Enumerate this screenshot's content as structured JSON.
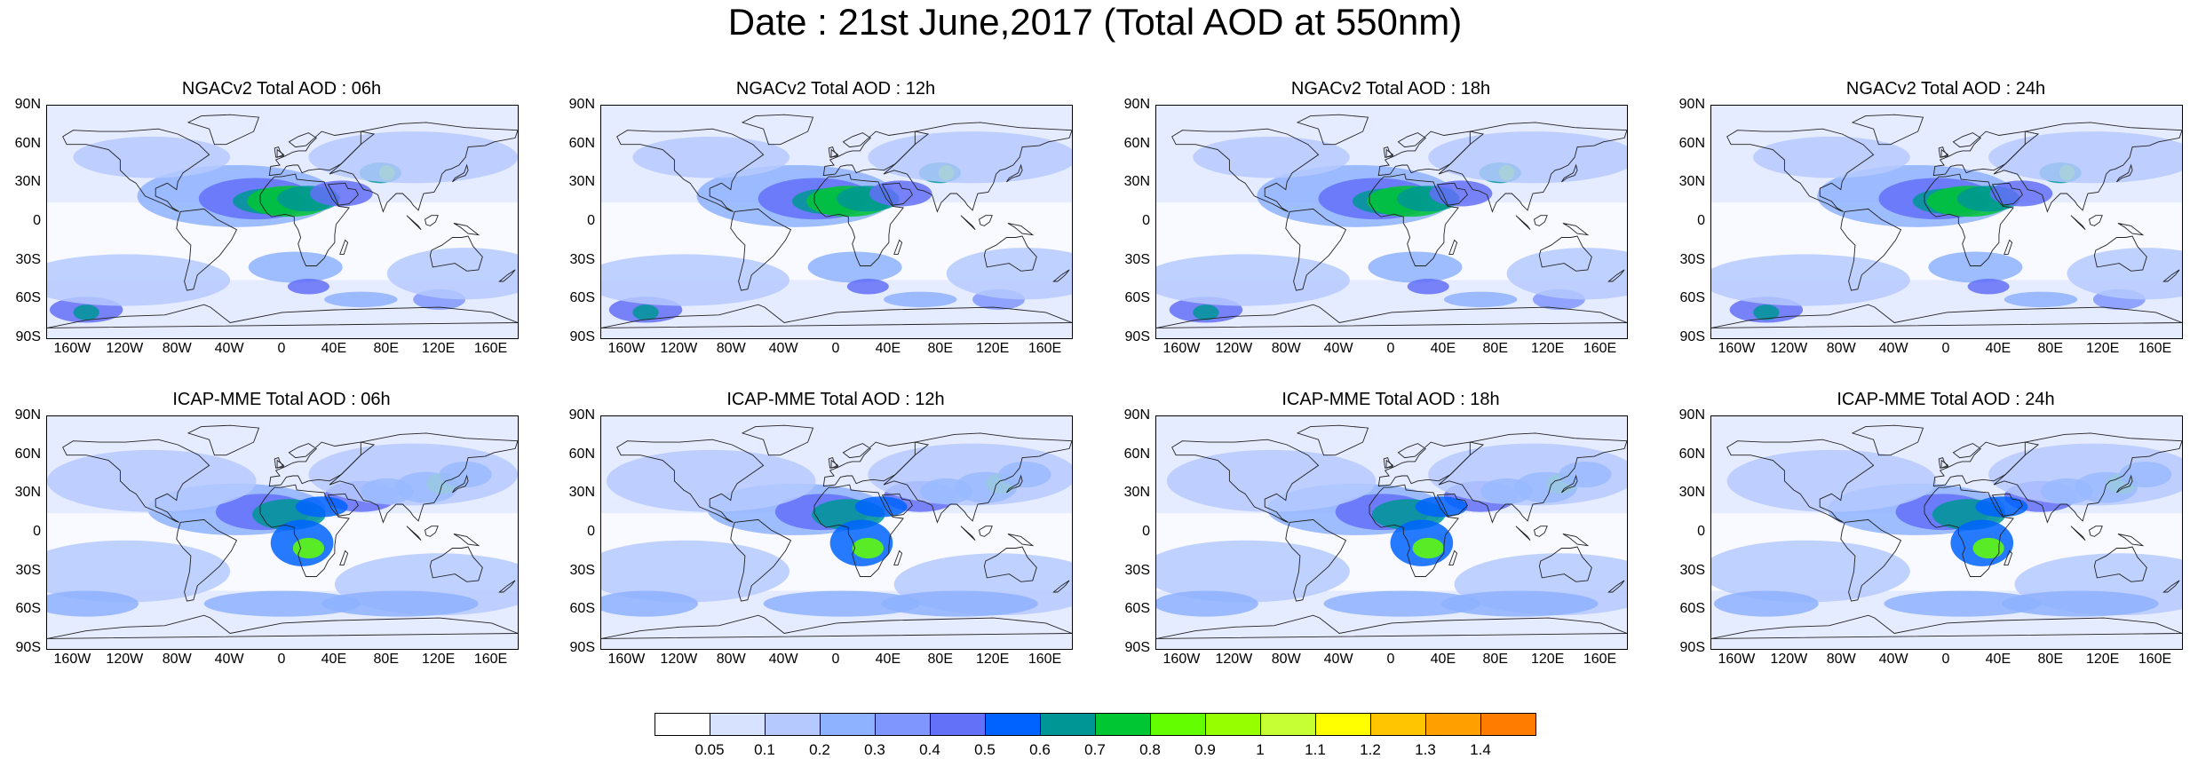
{
  "title": "Date : 21st June,2017 (Total AOD at 550nm)",
  "panels": [
    {
      "title": "NGACv2 Total AOD : 06h",
      "model": "NGACv2",
      "hour": "06h"
    },
    {
      "title": "NGACv2 Total AOD : 12h",
      "model": "NGACv2",
      "hour": "12h"
    },
    {
      "title": "NGACv2 Total AOD : 18h",
      "model": "NGACv2",
      "hour": "18h"
    },
    {
      "title": "NGACv2 Total AOD : 24h",
      "model": "NGACv2",
      "hour": "24h"
    },
    {
      "title": "ICAP-MME Total AOD : 06h",
      "model": "ICAP-MME",
      "hour": "06h"
    },
    {
      "title": "ICAP-MME Total AOD : 12h",
      "model": "ICAP-MME",
      "hour": "12h"
    },
    {
      "title": "ICAP-MME Total AOD : 18h",
      "model": "ICAP-MME",
      "hour": "18h"
    },
    {
      "title": "ICAP-MME Total AOD : 24h",
      "model": "ICAP-MME",
      "hour": "24h"
    }
  ],
  "lat_ticks": [
    "90N",
    "60N",
    "30N",
    "0",
    "30S",
    "60S",
    "90S"
  ],
  "lon_ticks": [
    "160W",
    "120W",
    "80W",
    "40W",
    "0",
    "40E",
    "80E",
    "120E",
    "160E"
  ],
  "lon_tick_values": [
    -160,
    -120,
    -80,
    -40,
    0,
    40,
    80,
    120,
    160
  ],
  "colorbar": {
    "labels": [
      "0.05",
      "0.1",
      "0.2",
      "0.3",
      "0.4",
      "0.5",
      "0.6",
      "0.7",
      "0.8",
      "0.9",
      "1",
      "1.1",
      "1.2",
      "1.3",
      "1.4"
    ],
    "colors": [
      "#ffffff",
      "#d6e2ff",
      "#b5c9ff",
      "#8eb2ff",
      "#7f96ff",
      "#6370f8",
      "#0063ff",
      "#009696",
      "#00c633",
      "#63ff00",
      "#96ff00",
      "#c6ff33",
      "#ffff00",
      "#ffc600",
      "#ffa000",
      "#ff7c00",
      "#ff1900"
    ]
  }
}
